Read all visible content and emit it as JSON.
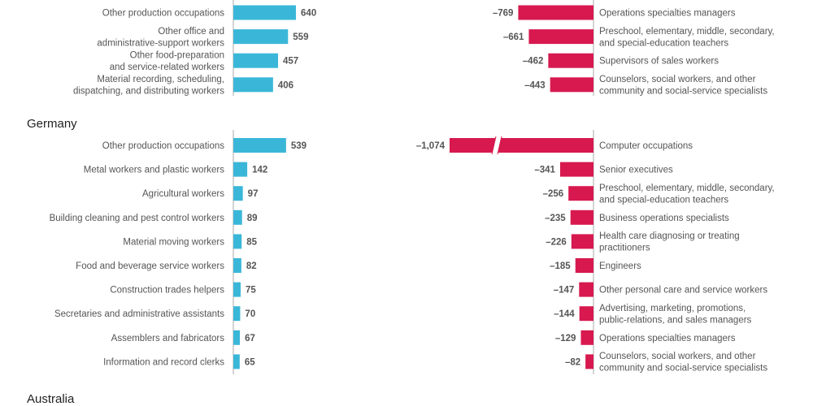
{
  "colors": {
    "gain": "#3ab7d8",
    "loss": "#d7194f",
    "axis": "#aaaaaa",
    "text": "#555555"
  },
  "chart_data": {
    "type": "bar",
    "sections": [
      {
        "country": "",
        "gains": [
          {
            "label": [
              "Other production occupations"
            ],
            "value": 640,
            "value_label": "640"
          },
          {
            "label": [
              "Other office and",
              "administrative-support workers"
            ],
            "value": 559,
            "value_label": "559"
          },
          {
            "label": [
              "Other food-preparation",
              "and service-related workers"
            ],
            "value": 457,
            "value_label": "457"
          },
          {
            "label": [
              "Material recording, scheduling,",
              "dispatching, and distributing workers"
            ],
            "value": 406,
            "value_label": "406"
          }
        ],
        "losses": [
          {
            "label": [
              "Operations specialties managers"
            ],
            "value": -769,
            "value_label": "–769"
          },
          {
            "label": [
              "Preschool, elementary, middle, secondary,",
              "and special-education teachers"
            ],
            "value": -661,
            "value_label": "–661"
          },
          {
            "label": [
              "Supervisors of sales workers"
            ],
            "value": -462,
            "value_label": "–462"
          },
          {
            "label": [
              "Counselors, social workers, and other",
              "community and social-service specialists"
            ],
            "value": -443,
            "value_label": "–443"
          }
        ]
      },
      {
        "country": "Germany",
        "gains": [
          {
            "label": [
              "Other production occupations"
            ],
            "value": 539,
            "value_label": "539"
          },
          {
            "label": [
              "Metal workers and plastic workers"
            ],
            "value": 142,
            "value_label": "142"
          },
          {
            "label": [
              "Agricultural workers"
            ],
            "value": 97,
            "value_label": "97"
          },
          {
            "label": [
              "Building cleaning and pest control workers"
            ],
            "value": 89,
            "value_label": "89"
          },
          {
            "label": [
              "Material moving workers"
            ],
            "value": 85,
            "value_label": "85"
          },
          {
            "label": [
              "Food and beverage service workers"
            ],
            "value": 82,
            "value_label": "82"
          },
          {
            "label": [
              "Construction trades helpers"
            ],
            "value": 75,
            "value_label": "75"
          },
          {
            "label": [
              "Secretaries and administrative assistants"
            ],
            "value": 70,
            "value_label": "70"
          },
          {
            "label": [
              "Assemblers and fabricators"
            ],
            "value": 67,
            "value_label": "67"
          },
          {
            "label": [
              "Information and record clerks"
            ],
            "value": 65,
            "value_label": "65"
          }
        ],
        "losses": [
          {
            "label": [
              "Computer occupations"
            ],
            "value": -1074,
            "value_label": "–1,074",
            "axis_break": true
          },
          {
            "label": [
              "Senior executives"
            ],
            "value": -341,
            "value_label": "–341"
          },
          {
            "label": [
              "Preschool, elementary, middle, secondary,",
              "and special-education teachers"
            ],
            "value": -256,
            "value_label": "–256"
          },
          {
            "label": [
              "Business operations specialists"
            ],
            "value": -235,
            "value_label": "–235"
          },
          {
            "label": [
              "Health care diagnosing or treating",
              "practitioners"
            ],
            "value": -226,
            "value_label": "–226"
          },
          {
            "label": [
              "Engineers"
            ],
            "value": -185,
            "value_label": "–185"
          },
          {
            "label": [
              "Other personal care and service workers"
            ],
            "value": -147,
            "value_label": "–147"
          },
          {
            "label": [
              "Advertising, marketing, promotions,",
              "public-relations, and sales managers"
            ],
            "value": -144,
            "value_label": "–144"
          },
          {
            "label": [
              "Operations specialties managers"
            ],
            "value": -129,
            "value_label": "–129"
          },
          {
            "label": [
              "Counselors, social workers, and other",
              "community and social-service specialists"
            ],
            "value": -82,
            "value_label": "–82"
          }
        ]
      },
      {
        "country": "Australia",
        "gains": [],
        "losses": []
      }
    ]
  }
}
